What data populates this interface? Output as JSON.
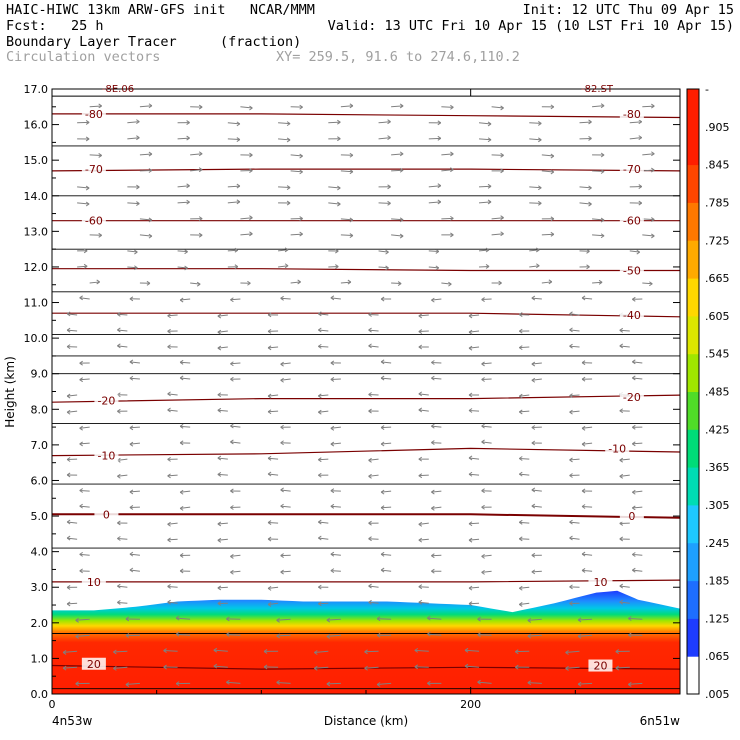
{
  "header": {
    "line1_left": "HAIC-HIWC 13km ARW-GFS init   NCAR/MMM",
    "line1_right": "Init: 12 UTC Thu 09 Apr 15",
    "line2_left": "Fcst:   25 h",
    "line2_right": "Valid: 13 UTC Fri 10 Apr 15 (10 LST Fri 10 Apr 15)",
    "line3_left": "Boundary Layer Tracer",
    "line3_unit": "(fraction)",
    "line4_left": "Circulation vectors",
    "line4_right": "XY= 259.5, 91.6 to 274.6,110.2"
  },
  "axes": {
    "ylabel": "Height (km)",
    "xlabel": "Distance (km)",
    "x_left_label": "4n53w",
    "x_right_label": "6n51w",
    "top_left_clipped": "-8E.06",
    "top_right_clipped": "-82.ST"
  },
  "colors": {
    "contour": "#7a0000",
    "vector": "#808080",
    "frame": "#000000"
  },
  "chart_data": {
    "type": "heatmap",
    "x_range": [
      0,
      300
    ],
    "y_range": [
      0,
      17
    ],
    "x_ticks": [
      0,
      200
    ],
    "x_tick_labels": [
      "0",
      "200"
    ],
    "y_ticks": [
      0,
      1,
      2,
      3,
      4,
      5,
      6,
      7,
      8,
      9,
      10,
      11,
      12,
      13,
      14,
      15,
      16,
      17
    ],
    "y_tick_labels": [
      "0.0",
      "1.0",
      "2.0",
      "3.0",
      "4.0",
      "5.0",
      "6.0",
      "7.0",
      "8.0",
      "9.0",
      "10.0",
      "11.0",
      "12.0",
      "13.0",
      "14.0",
      "15.0",
      "16.0",
      "17.0"
    ],
    "colorbar": {
      "colors": [
        "#ffffff",
        "#1e3cff",
        "#1e6eff",
        "#1ea0ff",
        "#1ec8ff",
        "#00dcb4",
        "#00dc78",
        "#50dc28",
        "#a0e600",
        "#dce600",
        "#ffd700",
        "#ffaa00",
        "#ff7800",
        "#ff4600",
        "#ff1e00"
      ],
      "labels": [
        ".005",
        ".065",
        ".125",
        ".185",
        ".245",
        ".305",
        ".365",
        ".425",
        ".485",
        ".545",
        ".605",
        ".665",
        ".725",
        ".785",
        ".845",
        ".905",
        "-"
      ]
    },
    "tracer_profile": {
      "x": [
        0,
        20,
        40,
        60,
        80,
        100,
        120,
        140,
        160,
        180,
        200,
        220,
        240,
        260,
        270,
        280,
        300
      ],
      "top_km": [
        2.35,
        2.35,
        2.45,
        2.6,
        2.65,
        2.65,
        2.6,
        2.6,
        2.6,
        2.55,
        2.5,
        2.3,
        2.55,
        2.85,
        2.9,
        2.65,
        2.4
      ],
      "red_top_km": [
        1.2,
        1.4,
        1.55,
        1.65,
        1.7,
        1.7,
        1.7,
        1.7,
        1.7,
        1.7,
        1.65,
        1.65,
        1.7,
        1.8,
        1.8,
        1.75,
        1.6
      ]
    },
    "temperature_contours": [
      {
        "label": "-80",
        "y_km": [
          16.3,
          16.3,
          16.25,
          16.2
        ]
      },
      {
        "label": "-70",
        "y_km": [
          14.7,
          14.75,
          14.75,
          14.7
        ]
      },
      {
        "label": "-60",
        "y_km": [
          13.3,
          13.3,
          13.3,
          13.3
        ]
      },
      {
        "label": "-50",
        "y_km": [
          11.95,
          11.95,
          11.9,
          11.9
        ]
      },
      {
        "label": "-40",
        "y_km": [
          10.7,
          10.7,
          10.7,
          10.6
        ]
      },
      {
        "label": "-20",
        "y_km": [
          8.2,
          8.3,
          8.3,
          8.4
        ]
      },
      {
        "label": "-10",
        "y_km": [
          6.7,
          6.75,
          6.9,
          6.8
        ]
      },
      {
        "label": "0",
        "y_km": [
          5.05,
          5.05,
          5.05,
          4.95
        ]
      },
      {
        "label": "10",
        "y_km": [
          3.15,
          3.15,
          3.15,
          3.2
        ]
      },
      {
        "label": "20",
        "y_km": [
          0.8,
          0.7,
          0.75,
          0.7
        ]
      }
    ],
    "background_lines_km": [
      16.8,
      15.4,
      14.0,
      12.5,
      11.3,
      10.1,
      9.5,
      9.0,
      7.6,
      5.9,
      4.1,
      1.7,
      0.15
    ],
    "contour_label_positions": [
      {
        "label": "-80",
        "x": 20,
        "y": 16.3
      },
      {
        "label": "-80",
        "x": 277,
        "y": 16.3
      },
      {
        "label": "-70",
        "x": 20,
        "y": 14.75
      },
      {
        "label": "-70",
        "x": 277,
        "y": 14.75
      },
      {
        "label": "-60",
        "x": 20,
        "y": 13.3
      },
      {
        "label": "-60",
        "x": 277,
        "y": 13.3
      },
      {
        "label": "-50",
        "x": 277,
        "y": 11.9
      },
      {
        "label": "-40",
        "x": 277,
        "y": 10.65
      },
      {
        "label": "-20",
        "x": 26,
        "y": 8.25
      },
      {
        "label": "-20",
        "x": 277,
        "y": 8.35
      },
      {
        "label": "-10",
        "x": 26,
        "y": 6.7
      },
      {
        "label": "-10",
        "x": 270,
        "y": 6.9
      },
      {
        "label": "0",
        "x": 26,
        "y": 5.05
      },
      {
        "label": "0",
        "x": 277,
        "y": 5.0
      },
      {
        "label": "10",
        "x": 20,
        "y": 3.15
      },
      {
        "label": "10",
        "x": 262,
        "y": 3.15
      },
      {
        "label": "20",
        "x": 20,
        "y": 0.85
      },
      {
        "label": "20",
        "x": 262,
        "y": 0.8
      }
    ]
  }
}
